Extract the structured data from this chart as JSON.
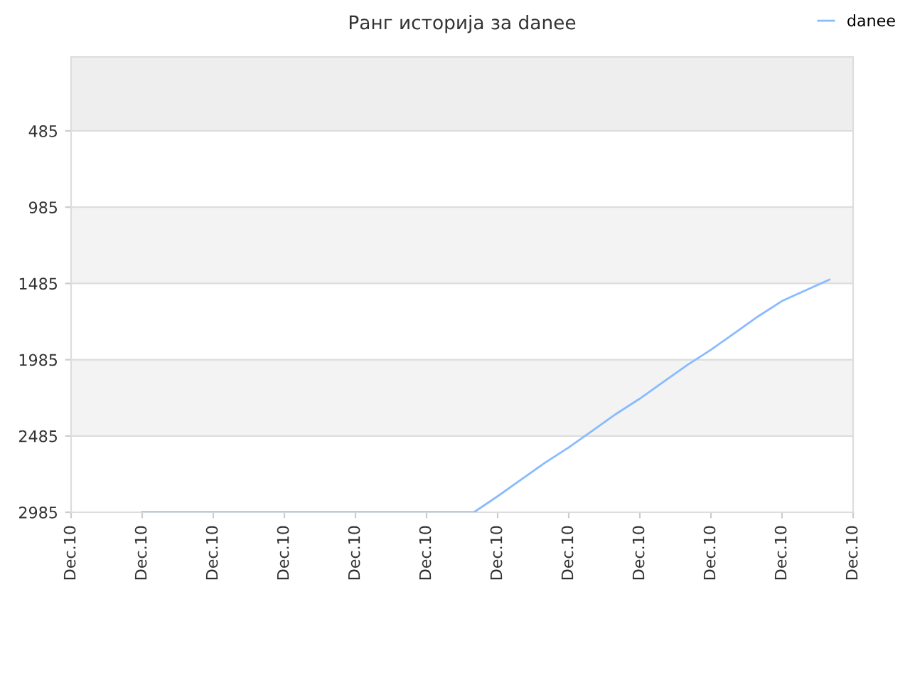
{
  "chart_data": {
    "type": "line",
    "title": "Ранг историја за danee",
    "categories": [
      "Dec.10",
      null,
      null,
      "Dec.10",
      null,
      null,
      "Dec.10",
      null,
      null,
      "Dec.10",
      null,
      null,
      "Dec.10",
      null,
      null,
      "Dec.10",
      null,
      null,
      "Dec.10",
      null,
      null,
      "Dec.10",
      null,
      null,
      "Dec.10",
      null,
      null,
      "Dec.10",
      null,
      null,
      "Dec.10",
      null,
      null,
      "Dec.10"
    ],
    "series": [
      {
        "name": "danee",
        "color": "#88bbff",
        "values": [
          null,
          null,
          null,
          2985,
          2985,
          2985,
          2985,
          2985,
          2985,
          2985,
          2985,
          2985,
          2985,
          2985,
          2985,
          2985,
          2985,
          2985,
          2880,
          2770,
          2660,
          2560,
          2450,
          2340,
          2240,
          2130,
          2020,
          1920,
          1810,
          1700,
          1600,
          1530,
          1460,
          null
        ]
      }
    ],
    "ylim": [
      2985,
      0
    ],
    "yticks": [
      485,
      985,
      1485,
      1985,
      2485,
      2985
    ],
    "bands": [
      {
        "axis": "y",
        "from": 0,
        "to": 485,
        "color": "#eeeeee"
      },
      {
        "axis": "y",
        "from": 985,
        "to": 1485,
        "color": "#f3f3f3"
      },
      {
        "axis": "y",
        "from": 1985,
        "to": 2485,
        "color": "#f3f3f3"
      }
    ],
    "grid": "y",
    "legend": "top right",
    "marker": "none",
    "line_style": "solid"
  }
}
